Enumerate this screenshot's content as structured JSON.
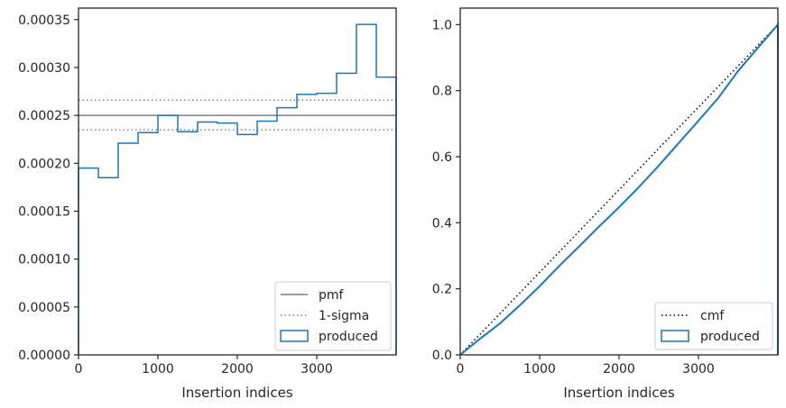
{
  "chart_data": [
    {
      "type": "step-histogram",
      "xlabel": "Insertion indices",
      "ylabel": "",
      "xlim": [
        0,
        4000
      ],
      "ylim": [
        0,
        0.000362
      ],
      "xticks": [
        0,
        1000,
        2000,
        3000
      ],
      "xtick_labels": [
        "0",
        "1000",
        "2000",
        "3000"
      ],
      "yticks": [
        0,
        5e-05,
        0.0001,
        0.00015,
        0.0002,
        0.00025,
        0.0003,
        0.00035
      ],
      "ytick_labels": [
        "0.00000",
        "0.00005",
        "0.00010",
        "0.00015",
        "0.00020",
        "0.00025",
        "0.00030",
        "0.00035"
      ],
      "pmf": 0.00025,
      "sigma_lower": 0.000235,
      "sigma_upper": 0.000266,
      "bin_edges": [
        0,
        250,
        500,
        750,
        1000,
        1250,
        1500,
        1750,
        2000,
        2250,
        2500,
        2750,
        3000,
        3250,
        3500,
        3750,
        4000
      ],
      "values": [
        0.000195,
        0.000185,
        0.000221,
        0.000232,
        0.00025,
        0.000233,
        0.000243,
        0.000242,
        0.00023,
        0.000244,
        0.000258,
        0.000272,
        0.000273,
        0.000294,
        0.000345,
        0.00029
      ],
      "legend": {
        "location": "lower-right",
        "entries": [
          {
            "label": "pmf",
            "style": "solid-line",
            "color": "#808080"
          },
          {
            "label": "1-sigma",
            "style": "dotted-line",
            "color": "#808080"
          },
          {
            "label": "produced",
            "style": "outline-box",
            "color": "#1f77b4"
          }
        ]
      }
    },
    {
      "type": "line",
      "xlabel": "Insertion indices",
      "ylabel": "",
      "xlim": [
        0,
        4000
      ],
      "ylim": [
        0,
        1.05
      ],
      "xticks": [
        0,
        1000,
        2000,
        3000
      ],
      "xtick_labels": [
        "0",
        "1000",
        "2000",
        "3000"
      ],
      "yticks": [
        0,
        0.2,
        0.4,
        0.6,
        0.8,
        1.0
      ],
      "ytick_labels": [
        "0.0",
        "0.2",
        "0.4",
        "0.6",
        "0.8",
        "1.0"
      ],
      "cmf": {
        "x": [
          0,
          4000
        ],
        "y": [
          0,
          1.0
        ]
      },
      "produced": {
        "x": [
          0,
          250,
          500,
          750,
          1000,
          1250,
          1500,
          1750,
          2000,
          2250,
          2500,
          2750,
          3000,
          3250,
          3500,
          3750,
          4000
        ],
        "y": [
          0,
          0.049,
          0.095,
          0.15,
          0.208,
          0.27,
          0.329,
          0.389,
          0.447,
          0.508,
          0.573,
          0.641,
          0.709,
          0.778,
          0.86,
          0.93,
          1.0
        ]
      },
      "legend": {
        "location": "lower-right",
        "entries": [
          {
            "label": "cmf",
            "style": "dotted-line",
            "color": "#000000"
          },
          {
            "label": "produced",
            "style": "outline-box",
            "color": "#1f77b4"
          }
        ]
      }
    }
  ]
}
